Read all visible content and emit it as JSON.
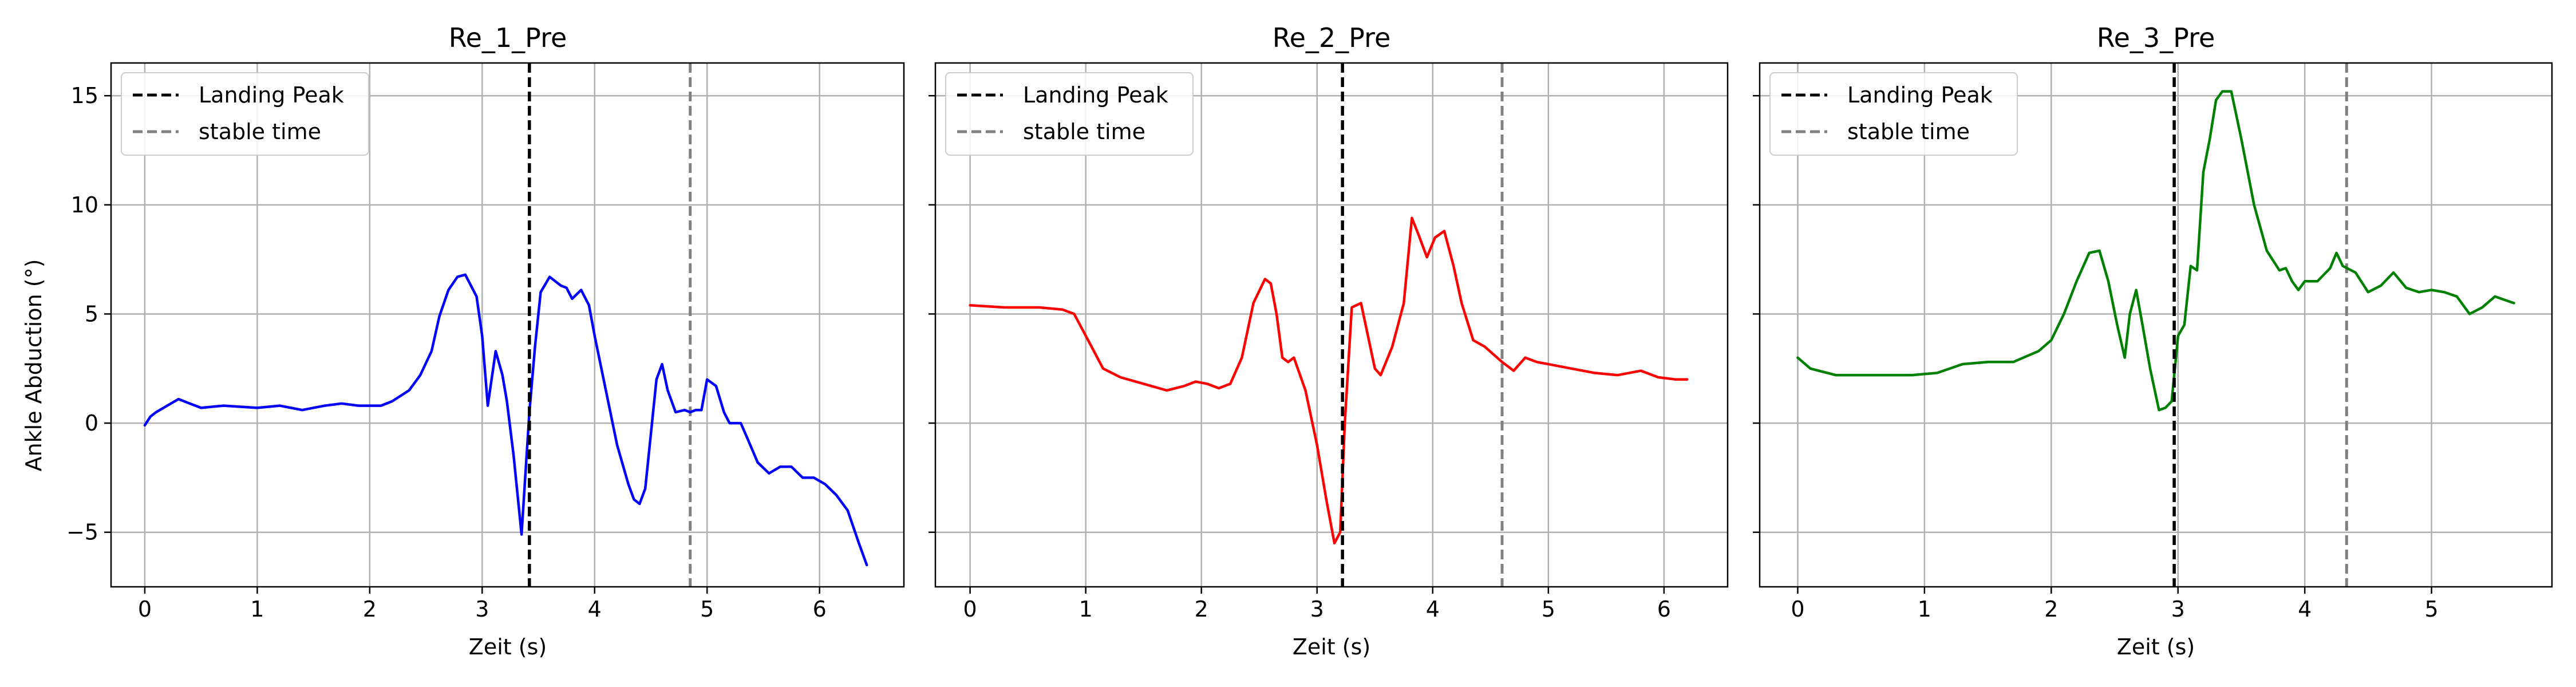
{
  "figure": {
    "shared_ylabel": "Ankle Abduction (°)",
    "xlabel": "Zeit (s)"
  },
  "legend": {
    "landing_label": "Landing Peak",
    "stable_label": "stable time"
  },
  "styles": {
    "grid_color": "#b0b0b0",
    "landing_line_color": "#000000",
    "stable_line_color": "#808080"
  },
  "chart_data": [
    {
      "type": "line",
      "title": "Re_1_Pre",
      "xlabel": "Zeit (s)",
      "ylabel": "Ankle Abduction (°)",
      "xlim": [
        -0.3,
        6.75
      ],
      "ylim": [
        -7.5,
        16.5
      ],
      "xticks": [
        0,
        1,
        2,
        3,
        4,
        5,
        6
      ],
      "yticks": [
        -5,
        0,
        5,
        10,
        15
      ],
      "grid": true,
      "legend_position": "upper-left",
      "color": "#0000ff",
      "landing_peak": 3.42,
      "stable_time": 4.85,
      "series": [
        {
          "x": [
            0,
            0.05,
            0.1,
            0.2,
            0.3,
            0.4,
            0.5,
            0.7,
            1.0,
            1.2,
            1.4,
            1.6,
            1.75,
            1.9,
            2.1,
            2.2,
            2.35,
            2.45,
            2.55,
            2.62,
            2.7,
            2.78,
            2.85,
            2.95,
            3.0,
            3.05,
            3.12,
            3.18,
            3.22,
            3.28,
            3.35,
            3.42,
            3.47,
            3.52,
            3.6,
            3.7,
            3.75,
            3.8,
            3.88,
            3.95,
            4.0,
            4.1,
            4.2,
            4.3,
            4.35,
            4.4,
            4.45,
            4.5,
            4.55,
            4.6,
            4.65,
            4.72,
            4.8,
            4.85,
            4.9,
            4.95,
            5.0,
            5.08,
            5.15,
            5.2,
            5.3,
            5.35,
            5.45,
            5.55,
            5.65,
            5.75,
            5.85,
            5.95,
            6.05,
            6.15,
            6.25,
            6.35,
            6.42
          ],
          "y": [
            -0.1,
            0.3,
            0.5,
            0.8,
            1.1,
            0.9,
            0.7,
            0.8,
            0.7,
            0.8,
            0.6,
            0.8,
            0.9,
            0.8,
            0.8,
            1.0,
            1.5,
            2.2,
            3.3,
            4.9,
            6.1,
            6.7,
            6.8,
            5.8,
            4.0,
            0.8,
            3.3,
            2.2,
            1.0,
            -1.5,
            -5.1,
            0.5,
            3.5,
            6.0,
            6.7,
            6.3,
            6.2,
            5.7,
            6.1,
            5.4,
            4.0,
            1.5,
            -1.0,
            -2.8,
            -3.5,
            -3.7,
            -3.0,
            -0.5,
            2.0,
            2.7,
            1.5,
            0.5,
            0.6,
            0.5,
            0.6,
            0.6,
            2.0,
            1.7,
            0.5,
            0.0,
            0.0,
            -0.6,
            -1.8,
            -2.3,
            -2.0,
            -2.0,
            -2.5,
            -2.5,
            -2.8,
            -3.3,
            -4.0,
            -5.5,
            -6.5
          ]
        }
      ]
    },
    {
      "type": "line",
      "title": "Re_2_Pre",
      "xlabel": "Zeit (s)",
      "ylabel": "",
      "xlim": [
        -0.3,
        6.55
      ],
      "ylim": [
        -7.5,
        16.5
      ],
      "xticks": [
        0,
        1,
        2,
        3,
        4,
        5,
        6
      ],
      "yticks": [
        -5,
        0,
        5,
        10,
        15
      ],
      "grid": true,
      "legend_position": "upper-left",
      "color": "#ff0000",
      "landing_peak": 3.22,
      "stable_time": 4.6,
      "series": [
        {
          "x": [
            0,
            0.3,
            0.6,
            0.8,
            0.9,
            0.95,
            1.05,
            1.15,
            1.3,
            1.5,
            1.7,
            1.85,
            1.95,
            2.05,
            2.15,
            2.25,
            2.35,
            2.45,
            2.55,
            2.6,
            2.65,
            2.7,
            2.75,
            2.8,
            2.9,
            3.0,
            3.08,
            3.15,
            3.2,
            3.24,
            3.3,
            3.38,
            3.42,
            3.5,
            3.55,
            3.65,
            3.75,
            3.82,
            3.88,
            3.95,
            4.02,
            4.1,
            4.18,
            4.25,
            4.35,
            4.45,
            4.6,
            4.7,
            4.8,
            4.9,
            5.0,
            5.2,
            5.4,
            5.6,
            5.8,
            5.95,
            6.1,
            6.2
          ],
          "y": [
            5.4,
            5.3,
            5.3,
            5.2,
            5.0,
            4.5,
            3.5,
            2.5,
            2.1,
            1.8,
            1.5,
            1.7,
            1.9,
            1.8,
            1.6,
            1.8,
            3.0,
            5.5,
            6.6,
            6.4,
            5.0,
            3.0,
            2.8,
            3.0,
            1.5,
            -1.0,
            -3.5,
            -5.5,
            -5.0,
            0.0,
            5.3,
            5.5,
            4.5,
            2.5,
            2.2,
            3.5,
            5.5,
            9.4,
            8.6,
            7.6,
            8.5,
            8.8,
            7.2,
            5.5,
            3.8,
            3.5,
            2.8,
            2.4,
            3.0,
            2.8,
            2.7,
            2.5,
            2.3,
            2.2,
            2.4,
            2.1,
            2.0,
            2.0
          ]
        }
      ]
    },
    {
      "type": "line",
      "title": "Re_3_Pre",
      "xlabel": "Zeit (s)",
      "ylabel": "",
      "xlim": [
        -0.3,
        5.95
      ],
      "ylim": [
        -7.5,
        16.5
      ],
      "xticks": [
        0,
        1,
        2,
        3,
        4,
        5
      ],
      "yticks": [
        -5,
        0,
        5,
        10,
        15
      ],
      "grid": true,
      "legend_position": "upper-left",
      "color": "#008000",
      "landing_peak": 2.97,
      "stable_time": 4.33,
      "series": [
        {
          "x": [
            0,
            0.1,
            0.3,
            0.6,
            0.9,
            1.1,
            1.3,
            1.5,
            1.7,
            1.9,
            2.0,
            2.1,
            2.2,
            2.3,
            2.38,
            2.45,
            2.52,
            2.58,
            2.62,
            2.67,
            2.72,
            2.78,
            2.85,
            2.9,
            2.95,
            3.0,
            3.05,
            3.1,
            3.15,
            3.2,
            3.25,
            3.3,
            3.35,
            3.42,
            3.5,
            3.6,
            3.7,
            3.8,
            3.85,
            3.9,
            3.95,
            4.0,
            4.05,
            4.1,
            4.2,
            4.25,
            4.3,
            4.4,
            4.5,
            4.6,
            4.7,
            4.8,
            4.9,
            5.0,
            5.1,
            5.2,
            5.3,
            5.4,
            5.5,
            5.6,
            5.65
          ],
          "y": [
            3.0,
            2.5,
            2.2,
            2.2,
            2.2,
            2.3,
            2.7,
            2.8,
            2.8,
            3.3,
            3.8,
            5.0,
            6.5,
            7.8,
            7.9,
            6.5,
            4.5,
            3.0,
            5.0,
            6.1,
            4.5,
            2.5,
            0.6,
            0.7,
            1.0,
            4.0,
            4.5,
            7.2,
            7.0,
            11.5,
            13.0,
            14.8,
            15.2,
            15.2,
            13.0,
            10.0,
            7.9,
            7.0,
            7.1,
            6.5,
            6.1,
            6.5,
            6.5,
            6.5,
            7.1,
            7.8,
            7.2,
            6.9,
            6.0,
            6.3,
            6.9,
            6.2,
            6.0,
            6.1,
            6.0,
            5.8,
            5.0,
            5.3,
            5.8,
            5.6,
            5.5
          ]
        }
      ]
    }
  ]
}
